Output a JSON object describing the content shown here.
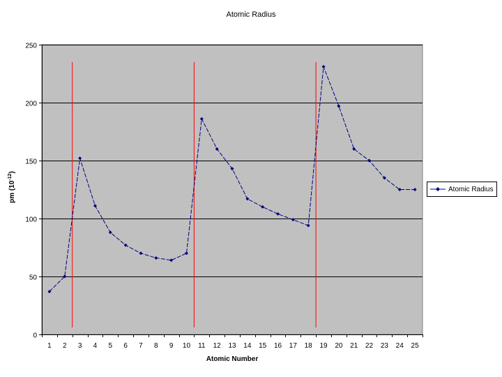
{
  "chart_data": {
    "type": "line",
    "title": "Atomic Radius",
    "xlabel": "Atomic Number",
    "ylabel_base": "pm (10",
    "ylabel_exp": "-12",
    "ylabel_close": ")",
    "ylim": [
      0,
      250
    ],
    "yticks": [
      0,
      50,
      100,
      150,
      200,
      250
    ],
    "grid": true,
    "legend_position": "right",
    "series": [
      {
        "name": "Atomic Radius",
        "color": "#000080",
        "x": [
          1,
          2,
          3,
          4,
          5,
          6,
          7,
          8,
          9,
          10,
          11,
          12,
          13,
          14,
          15,
          16,
          17,
          18,
          19,
          20,
          21,
          22,
          23,
          24,
          25
        ],
        "values": [
          37,
          50,
          152,
          111,
          88,
          77,
          70,
          66,
          64,
          70,
          186,
          160,
          143,
          117,
          110,
          104,
          99,
          94,
          231,
          197,
          160,
          150,
          135,
          125,
          125
        ]
      }
    ],
    "vertical_markers_between": [
      [
        2,
        3
      ],
      [
        10,
        11
      ],
      [
        18,
        19
      ]
    ],
    "marker_color": "#ff0000",
    "plot_background": "#c0c0c0"
  }
}
